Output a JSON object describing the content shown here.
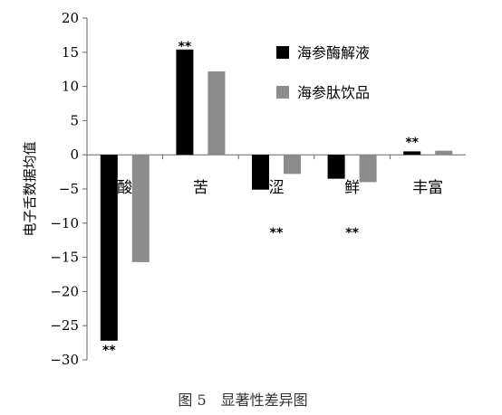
{
  "chart_data": {
    "type": "bar",
    "title": "",
    "xlabel": "",
    "ylabel": "电子舌数据均值",
    "ylim": [
      -30,
      20
    ],
    "yticks": [
      20,
      15,
      10,
      5,
      0,
      -5,
      -10,
      -15,
      -20,
      -25,
      -30
    ],
    "categories": [
      "酸",
      "苦",
      "涩",
      "鲜",
      "丰富"
    ],
    "series": [
      {
        "name": "海参酶解液",
        "color": "#000000",
        "values": [
          -27.2,
          15.4,
          -5.1,
          -3.5,
          0.5
        ]
      },
      {
        "name": "海参肽饮品",
        "color": "#8c8c8c",
        "values": [
          -15.7,
          12.2,
          -2.8,
          -4.0,
          0.6
        ]
      }
    ],
    "significance": [
      {
        "category": "酸",
        "label": "**"
      },
      {
        "category": "苦",
        "label": "**"
      },
      {
        "category": "涩",
        "label": "**"
      },
      {
        "category": "鲜",
        "label": "**"
      },
      {
        "category": "丰富",
        "label": "**"
      }
    ],
    "legend_position": "top-right",
    "grid": false
  },
  "caption": "图 5　显著性差异图"
}
